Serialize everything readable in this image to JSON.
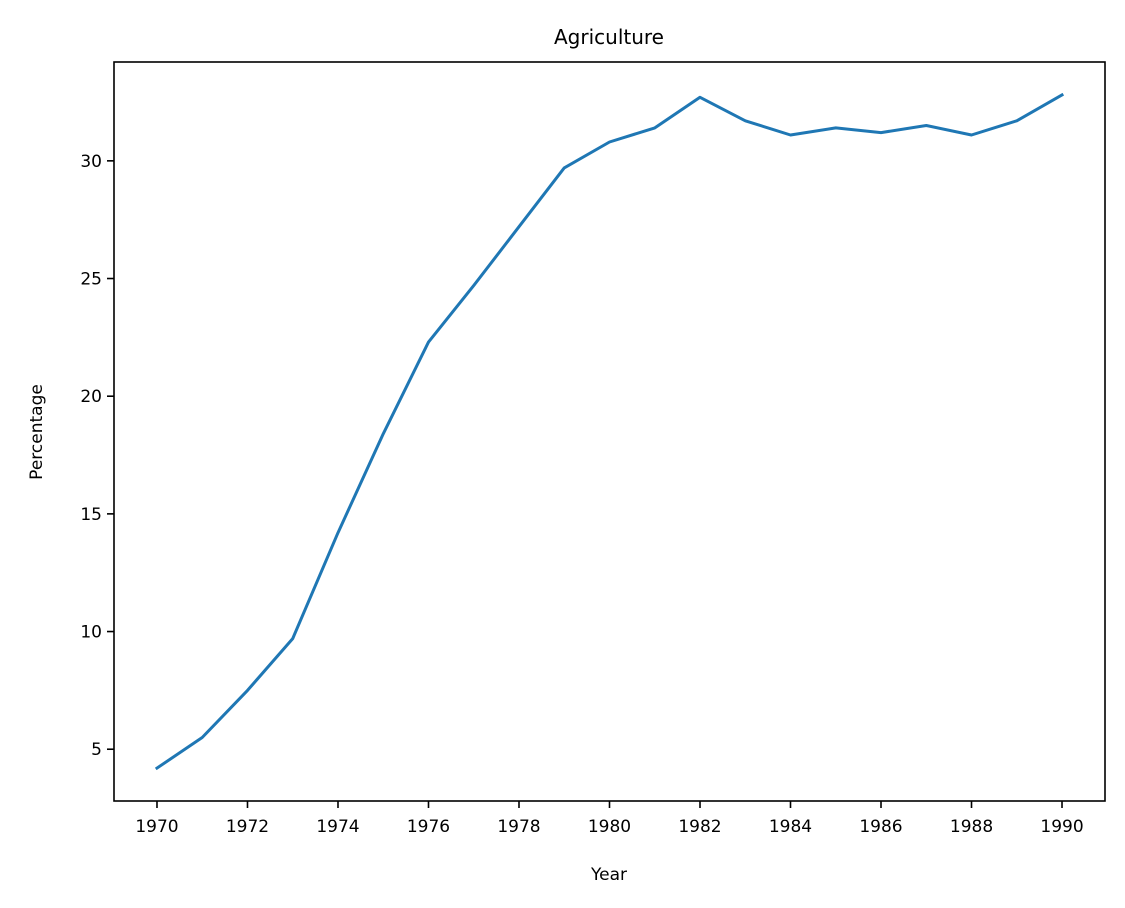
{
  "chart_data": {
    "type": "line",
    "title": "Agriculture",
    "xlabel": "Year",
    "ylabel": "Percentage",
    "xlim": [
      1969.05,
      1990.95
    ],
    "ylim": [
      2.8,
      34.2
    ],
    "xticks": [
      1970,
      1972,
      1974,
      1976,
      1978,
      1980,
      1982,
      1984,
      1986,
      1988,
      1990
    ],
    "yticks": [
      5,
      10,
      15,
      20,
      25,
      30
    ],
    "grid": false,
    "line_color": "#1f77b4",
    "series": [
      {
        "x": [
          1970,
          1971,
          1972,
          1973,
          1974,
          1975,
          1976,
          1977,
          1978,
          1979,
          1980,
          1981,
          1982,
          1983,
          1984,
          1985,
          1986,
          1987,
          1988,
          1989,
          1990
        ],
        "y": [
          4.2,
          5.5,
          7.5,
          9.7,
          14.2,
          18.4,
          22.3,
          24.7,
          27.2,
          29.7,
          30.8,
          31.4,
          32.7,
          31.7,
          31.1,
          31.4,
          31.2,
          31.5,
          31.1,
          31.7,
          32.8
        ]
      }
    ]
  }
}
